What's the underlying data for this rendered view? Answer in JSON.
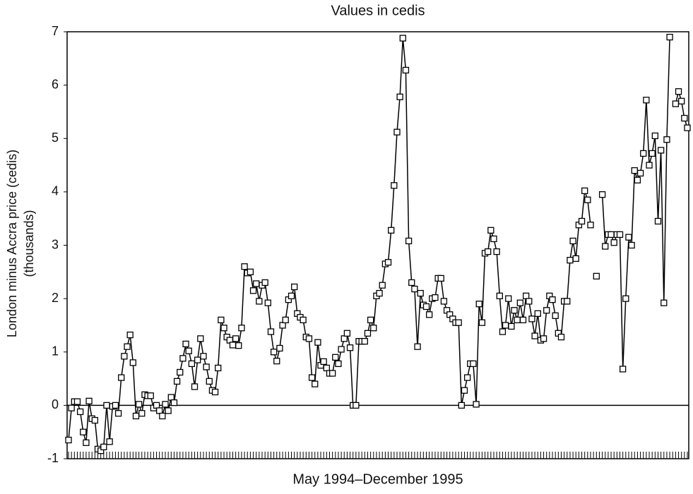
{
  "chart_data": {
    "type": "line",
    "title": "Values in cedis",
    "y_label": "London minus Accra price (cedis)",
    "y_label_2": "(thousands)",
    "x_label": "May 1994–December 1995",
    "values": [
      -0.65,
      -0.05,
      0.07,
      0.07,
      -0.12,
      -0.5,
      -0.7,
      0.08,
      -0.25,
      -0.28,
      -0.82,
      -0.85,
      -0.78,
      0.0,
      -0.68,
      -0.02,
      0.0,
      -0.15,
      0.52,
      0.92,
      1.1,
      1.32,
      0.8,
      -0.2,
      0.02,
      -0.15,
      0.2,
      0.18,
      0.18,
      -0.05,
      0.0,
      -0.1,
      -0.2,
      0.02,
      -0.1,
      0.15,
      0.05,
      0.45,
      0.62,
      0.88,
      1.15,
      1.02,
      0.78,
      0.35,
      0.85,
      1.25,
      0.92,
      0.72,
      0.45,
      0.28,
      0.25,
      0.7,
      1.6,
      1.45,
      1.28,
      1.22,
      1.13,
      1.25,
      1.12,
      1.45,
      2.6,
      2.48,
      2.5,
      2.15,
      2.28,
      1.95,
      2.25,
      2.3,
      1.92,
      1.38,
      1.0,
      0.83,
      1.07,
      1.5,
      1.6,
      1.98,
      2.05,
      2.22,
      1.72,
      1.65,
      1.6,
      1.28,
      1.25,
      0.52,
      0.4,
      1.18,
      0.75,
      0.82,
      0.7,
      0.6,
      0.6,
      0.9,
      0.78,
      1.05,
      1.25,
      1.35,
      1.08,
      0.0,
      0.0,
      1.2,
      1.2,
      1.2,
      1.35,
      1.6,
      1.45,
      2.05,
      2.1,
      2.25,
      2.65,
      2.68,
      3.28,
      4.12,
      5.12,
      5.78,
      6.88,
      6.28,
      3.08,
      2.3,
      2.18,
      1.1,
      2.1,
      1.88,
      1.85,
      1.7,
      2.0,
      2.02,
      2.38,
      2.38,
      1.95,
      1.78,
      1.7,
      1.62,
      1.55,
      1.55,
      0.0,
      0.28,
      0.52,
      0.78,
      0.78,
      0.02,
      1.9,
      1.55,
      2.85,
      2.88,
      3.28,
      3.12,
      2.88,
      2.05,
      1.38,
      1.5,
      2.0,
      1.48,
      1.78,
      1.6,
      1.92,
      1.6,
      2.05,
      1.95,
      1.62,
      1.3,
      1.72,
      1.22,
      1.25,
      1.78,
      2.05,
      1.98,
      1.68,
      1.35,
      1.28,
      1.95,
      1.95,
      2.72,
      3.08,
      2.75,
      3.38,
      3.45,
      4.02,
      3.85,
      3.38,
      null,
      2.42,
      null,
      3.95,
      2.98,
      3.2,
      3.2,
      3.05,
      3.2,
      3.2,
      0.68,
      2.0,
      3.15,
      3.0,
      4.4,
      4.22,
      4.35,
      4.72,
      5.72,
      4.5,
      4.72,
      5.05,
      3.45,
      4.78,
      1.92,
      4.98,
      6.9,
      null,
      5.65,
      5.88,
      5.7,
      5.38,
      5.2
    ],
    "color": "#000000",
    "ylim": [
      -1,
      7
    ],
    "yticks": [
      -1,
      0,
      1,
      2,
      3,
      4,
      5,
      6,
      7
    ]
  }
}
